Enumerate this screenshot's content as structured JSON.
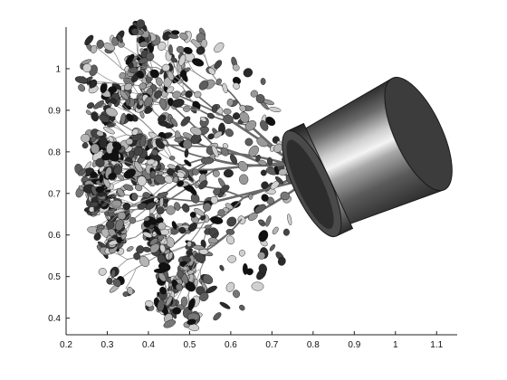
{
  "figure": {
    "background": "#ffffff",
    "axes": {
      "x_range": [
        0.2,
        1.15
      ],
      "y_range": [
        0.36,
        1.1
      ],
      "x_ticks": [
        "0.2",
        "0.3",
        "0.4",
        "0.5",
        "0.6",
        "0.7",
        "0.8",
        "0.9",
        "1",
        "1.1"
      ],
      "y_ticks": [
        "0.4",
        "0.5",
        "0.6",
        "0.7",
        "0.8",
        "0.9",
        "1"
      ],
      "box": false,
      "grid": false
    },
    "content": "3-D rendered potted plant (flower pot with branches and leaves), shown inverted",
    "colormap": "grayscale"
  }
}
